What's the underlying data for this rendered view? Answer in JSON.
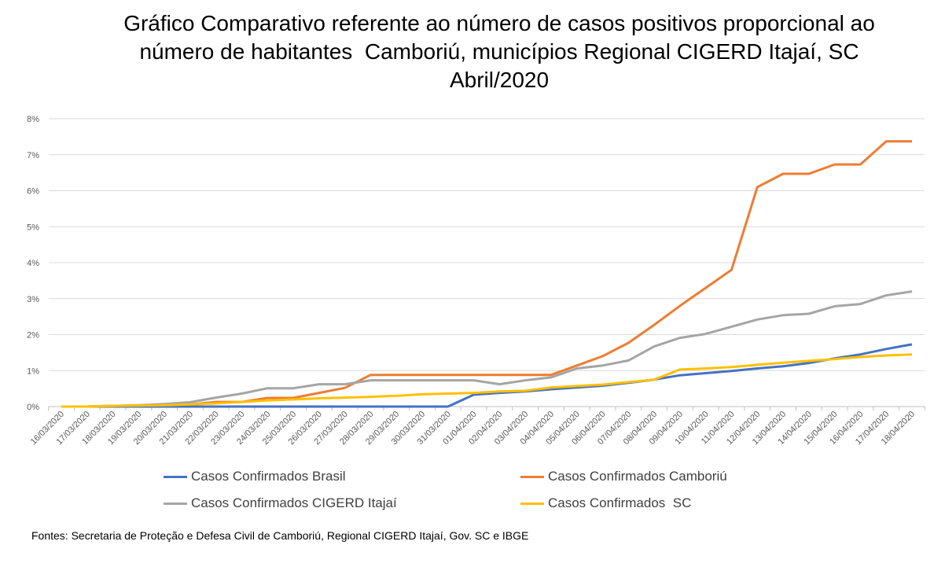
{
  "chart_data": {
    "type": "line",
    "title_lines": [
      "Gráfico Comparativo referente ao número de casos positivos proporcional ao",
      "número de habitantes  Camboriú, municípios Regional CIGERD Itajaí, SC",
      "Abril/2020"
    ],
    "xlabel": "",
    "ylabel": "",
    "ylim": [
      0,
      8
    ],
    "yticks": [
      "0%",
      "1%",
      "2%",
      "3%",
      "4%",
      "5%",
      "6%",
      "7%",
      "8%"
    ],
    "grid": true,
    "legend_placement": "bottom",
    "x": [
      "16/03/2020",
      "17/03/2020",
      "18/03/2020",
      "19/03/2020",
      "20/03/2020",
      "21/03/2020",
      "22/03/2020",
      "23/03/2020",
      "24/03/2020",
      "25/03/2020",
      "26/03/2020",
      "27/03/2020",
      "28/03/2020",
      "29/03/2020",
      "30/03/2020",
      "31/03/2020",
      "01/04/2020",
      "02/04/2020",
      "03/04/2020",
      "04/04/2020",
      "05/04/2020",
      "06/04/2020",
      "07/04/2020",
      "08/04/2020",
      "09/04/2020",
      "10/04/2020",
      "11/04/2020",
      "12/04/2020",
      "13/04/2020",
      "14/04/2020",
      "15/04/2020",
      "16/04/2020",
      "17/04/2020",
      "18/04/2020"
    ],
    "series": [
      {
        "name": "Casos Confirmados Brasil",
        "color": "#4472C4",
        "values": [
          0,
          0,
          0,
          0,
          0,
          0,
          0,
          0,
          0,
          0,
          0,
          0,
          0,
          0,
          0,
          0,
          0.33,
          0.38,
          0.42,
          0.48,
          0.53,
          0.58,
          0.66,
          0.75,
          0.87,
          0.93,
          0.99,
          1.06,
          1.12,
          1.21,
          1.34,
          1.45,
          1.6,
          1.73
        ]
      },
      {
        "name": "Casos Confirmados Camboriú",
        "color": "#ED7D31",
        "values": [
          0,
          0,
          0.02,
          0.03,
          0.05,
          0.06,
          0.13,
          0.13,
          0.24,
          0.24,
          0.38,
          0.52,
          0.88,
          0.88,
          0.88,
          0.88,
          0.88,
          0.88,
          0.88,
          0.88,
          1.14,
          1.4,
          1.77,
          2.27,
          2.8,
          3.3,
          3.8,
          6.1,
          6.47,
          6.47,
          6.73,
          6.73,
          7.37,
          7.37
        ]
      },
      {
        "name": "Casos Confirmados CIGERD Itajaí",
        "color": "#A5A5A5",
        "values": [
          0,
          0,
          0.02,
          0.04,
          0.07,
          0.12,
          0.25,
          0.36,
          0.51,
          0.51,
          0.62,
          0.62,
          0.73,
          0.73,
          0.73,
          0.73,
          0.73,
          0.62,
          0.73,
          0.81,
          1.06,
          1.14,
          1.28,
          1.67,
          1.91,
          2.02,
          2.22,
          2.42,
          2.54,
          2.58,
          2.79,
          2.85,
          3.09,
          3.2
        ]
      },
      {
        "name": "Casos Confirmados  SC",
        "color": "#FFC000",
        "values": [
          0,
          0,
          0.02,
          0.03,
          0.04,
          0.06,
          0.09,
          0.13,
          0.17,
          0.2,
          0.23,
          0.25,
          0.27,
          0.3,
          0.34,
          0.36,
          0.38,
          0.42,
          0.44,
          0.53,
          0.57,
          0.61,
          0.68,
          0.75,
          1.03,
          1.06,
          1.1,
          1.16,
          1.22,
          1.27,
          1.32,
          1.38,
          1.42,
          1.45
        ]
      }
    ]
  },
  "source": "Fontes: Secretaria de Proteção e Defesa Civil de Camboriú, Regional CIGERD Itajaí, Gov. SC e IBGE"
}
